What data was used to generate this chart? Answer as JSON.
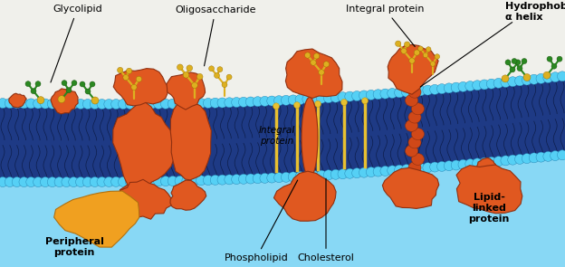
{
  "bg_color": "#ffffff",
  "outside_color": "#f5f5f0",
  "cytoplasm_color": "#a8e0f8",
  "bilayer_mid_color": "#1a3a8a",
  "bilayer_light": "#4ab8e8",
  "head_color": "#55ccee",
  "tail_color": "#0a2060",
  "protein_color": "#e05820",
  "protein_color2": "#cc4010",
  "peripheral_color": "#f0a020",
  "cholesterol_color": "#e8c030",
  "oligo_color": "#ddb020",
  "green_color": "#2a8820",
  "labels": {
    "glycolipid": "Glycolipid",
    "oligosaccharide": "Oligosaccharide",
    "integral_protein_top": "Integral protein",
    "hydrophobic": "Hydrophobic\nα helix",
    "integral_protein_mid": "Integral\nprotein",
    "phospholipid": "Phospholipid",
    "cholesterol": "Cholesterol",
    "peripheral": "Peripheral\nprotein",
    "lipid_linked": "Lipid-\nlinked\nprotein"
  },
  "figsize": [
    6.24,
    2.95
  ],
  "dpi": 100
}
